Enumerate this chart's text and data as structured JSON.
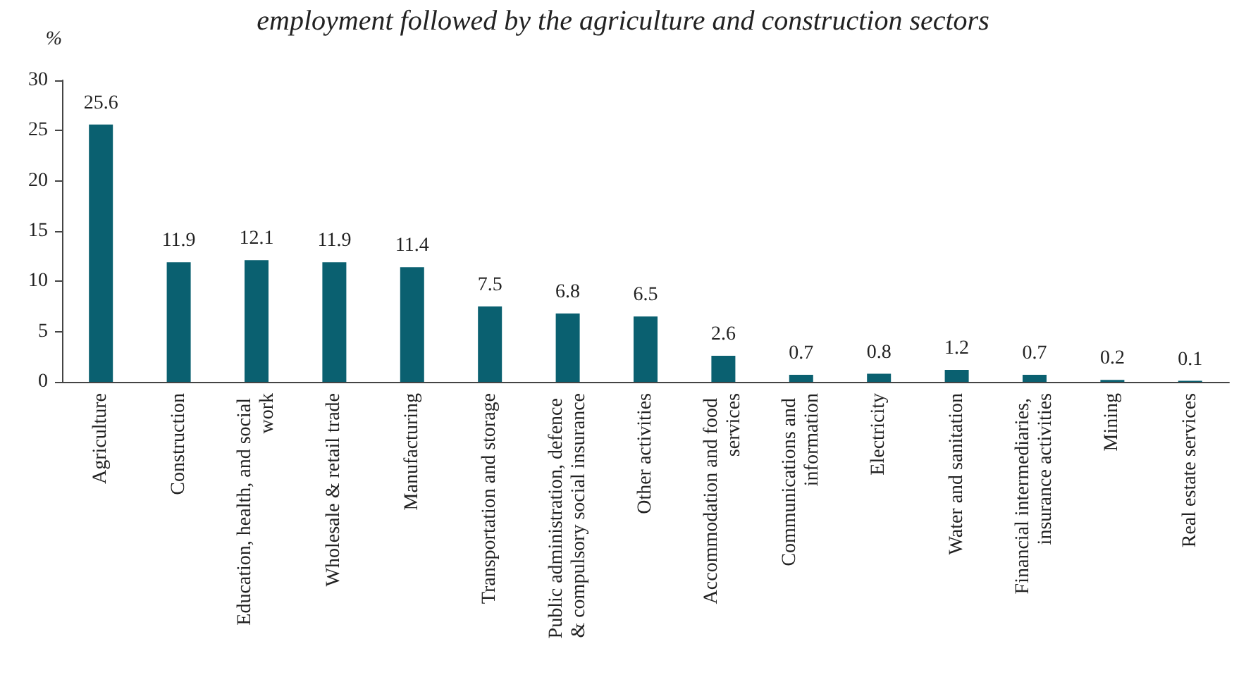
{
  "chart_data": {
    "type": "bar",
    "title": "employment followed by the agriculture and construction sectors",
    "ylabel": "%",
    "categories": [
      "Agriculture",
      "Construction",
      "Education, health, and social work",
      "Wholesale & retail trade",
      "Manufacturing",
      "Transportation and storage",
      "Public administration, defence & compulsory social insurance",
      "Other activities",
      "Accommodation and food services",
      "Communications and information",
      "Electricity",
      "Water and sanitation",
      "Financial intermediaries, insurance activities",
      "Mining",
      "Real estate services"
    ],
    "values": [
      25.6,
      11.9,
      12.1,
      11.9,
      11.4,
      7.5,
      6.8,
      6.5,
      2.6,
      0.7,
      0.8,
      1.2,
      0.7,
      0.2,
      0.1
    ],
    "color": "#0a6070",
    "ylim": [
      0,
      30
    ],
    "yticks": [
      0,
      5,
      10,
      15,
      20,
      25,
      30
    ],
    "grid": false,
    "data_labels": true
  }
}
